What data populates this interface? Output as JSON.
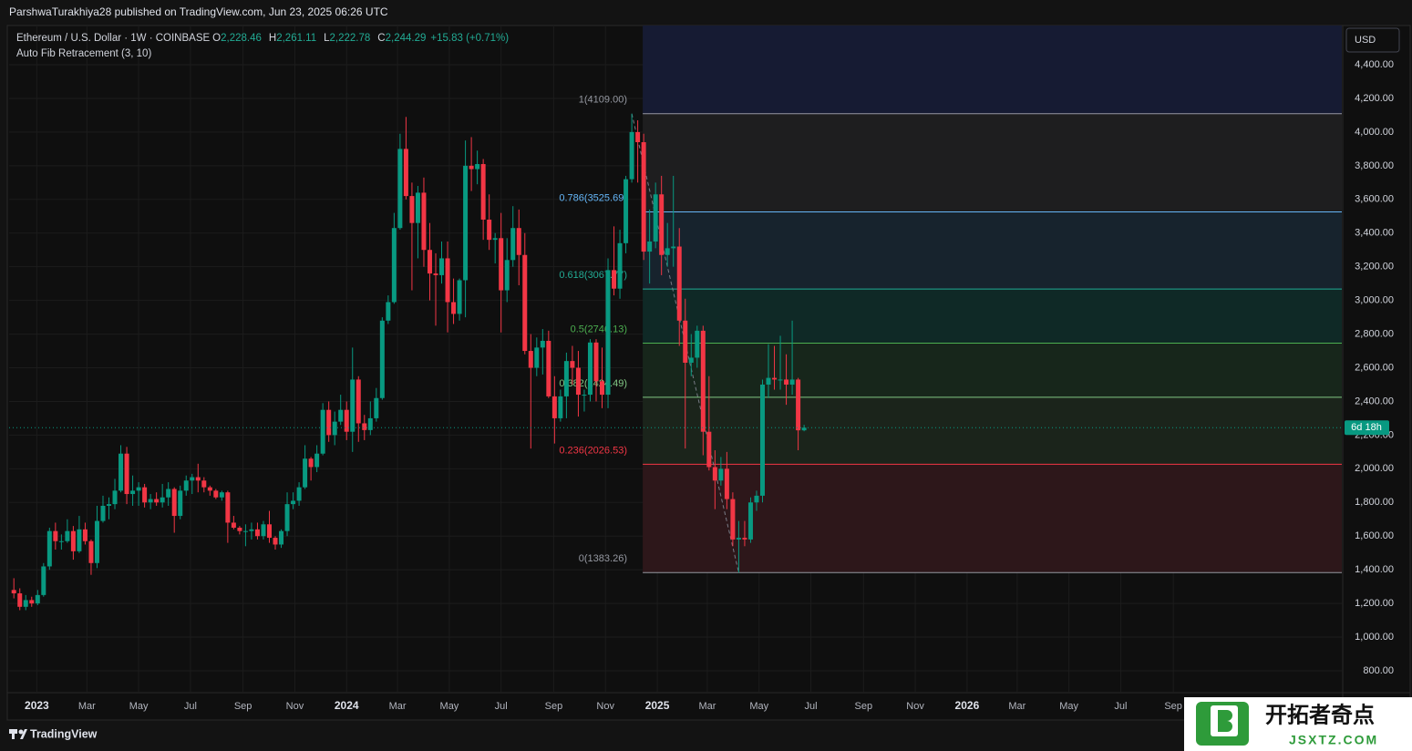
{
  "header": {
    "published": "ParshwaTurakhiya28 published on TradingView.com, Jun 23, 2025 06:26 UTC"
  },
  "legend": {
    "symbol": "Ethereum / U.S. Dollar · 1W · COINBASE",
    "ohlc": [
      {
        "key": "O",
        "value": "2,228.46"
      },
      {
        "key": "H",
        "value": "2,261.11"
      },
      {
        "key": "L",
        "value": "2,222.78"
      },
      {
        "key": "C",
        "value": "2,244.29"
      }
    ],
    "change": "+15.83 (+0.71%)",
    "indicator": "Auto Fib Retracement (3, 10)"
  },
  "chart_data": {
    "type": "candlestick",
    "up_color": "#089981",
    "down_color": "#f23645",
    "grid": true,
    "currency": "USD",
    "countdown": "6d 18h",
    "x": [
      0,
      1,
      2,
      3,
      4,
      5,
      6,
      7,
      8,
      9,
      10,
      11,
      12,
      13,
      14,
      15,
      16,
      17,
      18,
      19,
      20,
      21,
      22,
      23,
      24,
      25,
      26,
      27,
      28,
      29,
      30,
      31,
      32,
      33,
      34,
      35,
      36,
      37,
      38,
      39,
      40,
      41,
      42,
      43,
      44,
      45,
      46,
      47,
      48,
      49,
      50,
      51,
      52,
      53,
      54,
      55,
      56,
      57,
      58,
      59,
      60,
      61,
      62,
      63,
      64,
      65,
      66,
      67,
      68,
      69,
      70,
      71,
      72,
      73,
      74,
      75,
      76,
      77,
      78,
      79,
      80,
      81,
      82,
      83,
      84,
      85,
      86,
      87,
      88,
      89,
      90,
      91,
      92,
      93,
      94,
      95,
      96,
      97,
      98,
      99,
      100,
      101,
      102,
      103,
      104,
      105,
      106,
      107,
      108,
      109,
      110,
      111,
      112,
      113,
      114,
      115,
      116,
      117,
      118,
      119,
      120,
      121,
      122,
      123,
      124,
      125,
      126,
      127,
      128,
      129,
      130,
      131,
      132,
      133
    ],
    "open": [
      1280,
      1260,
      1180,
      1220,
      1200,
      1250,
      1420,
      1630,
      1570,
      1570,
      1630,
      1510,
      1640,
      1570,
      1440,
      1690,
      1780,
      1790,
      1870,
      2090,
      1850,
      1870,
      1890,
      1800,
      1820,
      1800,
      1830,
      1880,
      1720,
      1870,
      1930,
      1950,
      1930,
      1890,
      1870,
      1830,
      1860,
      1680,
      1650,
      1630,
      1630,
      1640,
      1600,
      1670,
      1590,
      1550,
      1630,
      1790,
      1810,
      1890,
      2060,
      2010,
      2090,
      2350,
      2200,
      2280,
      2350,
      2220,
      2530,
      2270,
      2230,
      2300,
      2420,
      2880,
      2990,
      3430,
      3900,
      3620,
      3460,
      3640,
      3300,
      3160,
      3150,
      3250,
      2990,
      2920,
      3120,
      3800,
      3780,
      3810,
      3480,
      3360,
      3370,
      3060,
      3240,
      3430,
      3270,
      2700,
      2600,
      2720,
      2760,
      2430,
      2300,
      2430,
      2640,
      2600,
      2440,
      2440,
      2750,
      2520,
      2440,
      3180,
      3070,
      3340,
      3720,
      4000,
      3940,
      3290,
      3350,
      3630,
      3270,
      3310,
      3320,
      2880,
      2630,
      2660,
      2820,
      2220,
      2010,
      1930,
      2000,
      1820,
      1580,
      1590,
      1580,
      1800,
      1840,
      2500,
      2540,
      2530,
      2530,
      2500,
      2530,
      2228.46
    ],
    "high": [
      1350,
      1290,
      1250,
      1240,
      1280,
      1440,
      1650,
      1680,
      1610,
      1700,
      1660,
      1720,
      1680,
      1580,
      1780,
      1840,
      1830,
      1940,
      2140,
      2130,
      1960,
      1920,
      1910,
      1850,
      1860,
      1910,
      1920,
      1890,
      1900,
      1960,
      1970,
      2030,
      1950,
      1900,
      1880,
      1870,
      1870,
      1720,
      1660,
      1670,
      1680,
      1680,
      1690,
      1750,
      1600,
      1640,
      1860,
      1860,
      1920,
      2140,
      2070,
      2140,
      2390,
      2400,
      2340,
      2440,
      2400,
      2720,
      2550,
      2320,
      2400,
      2480,
      2900,
      3030,
      3520,
      3990,
      4090,
      3700,
      3680,
      3730,
      3460,
      3280,
      3350,
      3350,
      3130,
      3130,
      3950,
      3970,
      3890,
      3840,
      3630,
      3400,
      3520,
      3370,
      3560,
      3540,
      3400,
      2800,
      2780,
      2830,
      2820,
      2550,
      2470,
      2690,
      2730,
      2700,
      2470,
      2770,
      2770,
      2720,
      3250,
      3440,
      3420,
      3740,
      4109,
      4070,
      3990,
      3540,
      3700,
      3740,
      3460,
      3740,
      3430,
      3010,
      2800,
      2850,
      2850,
      2550,
      2110,
      2070,
      2100,
      1860,
      1690,
      1690,
      1830,
      1870,
      2530,
      2740,
      2730,
      2790,
      2680,
      2880,
      2540,
      2261.11
    ],
    "low": [
      1230,
      1160,
      1160,
      1180,
      1190,
      1240,
      1400,
      1520,
      1520,
      1560,
      1460,
      1500,
      1550,
      1370,
      1410,
      1680,
      1700,
      1760,
      1860,
      1790,
      1780,
      1780,
      1770,
      1760,
      1780,
      1770,
      1780,
      1620,
      1700,
      1840,
      1850,
      1860,
      1860,
      1840,
      1820,
      1810,
      1560,
      1640,
      1610,
      1540,
      1580,
      1580,
      1580,
      1560,
      1520,
      1530,
      1600,
      1760,
      1780,
      1880,
      1930,
      1980,
      2080,
      2160,
      2140,
      2260,
      2170,
      2100,
      2160,
      2170,
      2200,
      2280,
      2410,
      2860,
      2980,
      3420,
      3600,
      3060,
      3250,
      3200,
      3000,
      2850,
      3100,
      2810,
      2860,
      2880,
      2900,
      3650,
      3690,
      3360,
      3300,
      3220,
      2810,
      2990,
      3200,
      3090,
      2680,
      2120,
      2550,
      2560,
      2420,
      2150,
      2280,
      2300,
      2500,
      2310,
      2340,
      2400,
      2400,
      2360,
      2360,
      3030,
      3010,
      3280,
      3700,
      3700,
      3240,
      3100,
      3310,
      3150,
      3200,
      3200,
      2730,
      2120,
      2550,
      2600,
      2080,
      1990,
      1760,
      1900,
      1760,
      1540,
      1383.26,
      1540,
      1560,
      1750,
      1800,
      2420,
      2470,
      2470,
      2380,
      2440,
      2110,
      2222.78
    ],
    "close": [
      1260,
      1180,
      1220,
      1200,
      1250,
      1420,
      1630,
      1570,
      1570,
      1630,
      1510,
      1640,
      1570,
      1440,
      1690,
      1780,
      1790,
      1870,
      2090,
      1850,
      1870,
      1890,
      1800,
      1820,
      1800,
      1830,
      1880,
      1720,
      1870,
      1930,
      1950,
      1930,
      1890,
      1870,
      1830,
      1860,
      1680,
      1650,
      1630,
      1630,
      1640,
      1600,
      1670,
      1590,
      1550,
      1630,
      1790,
      1810,
      1890,
      2060,
      2010,
      2090,
      2350,
      2200,
      2280,
      2350,
      2220,
      2530,
      2270,
      2230,
      2300,
      2420,
      2880,
      2990,
      3430,
      3900,
      3620,
      3460,
      3640,
      3300,
      3160,
      3150,
      3250,
      2990,
      2920,
      3120,
      3800,
      3780,
      3810,
      3480,
      3360,
      3370,
      3060,
      3240,
      3430,
      3270,
      2700,
      2600,
      2720,
      2760,
      2430,
      2300,
      2430,
      2640,
      2600,
      2440,
      2440,
      2750,
      2520,
      2440,
      3180,
      3070,
      3340,
      3720,
      4000,
      3940,
      3290,
      3350,
      3630,
      3270,
      3310,
      3320,
      2880,
      2630,
      2660,
      2820,
      2220,
      2010,
      1930,
      2000,
      1820,
      1580,
      1590,
      1580,
      1800,
      1840,
      2500,
      2540,
      2530,
      2530,
      2500,
      2530,
      2228.46,
      2244.29
    ],
    "xlim": [
      -0.8,
      223.5
    ],
    "xticks": [
      {
        "value": 3.86,
        "label": "2023"
      },
      {
        "value": 12.29,
        "label": "Mar"
      },
      {
        "value": 21.0,
        "label": "May"
      },
      {
        "value": 29.71,
        "label": "Jul"
      },
      {
        "value": 38.57,
        "label": "Sep"
      },
      {
        "value": 47.29,
        "label": "Nov"
      },
      {
        "value": 56.0,
        "label": "2024"
      },
      {
        "value": 64.57,
        "label": "Mar"
      },
      {
        "value": 73.29,
        "label": "May"
      },
      {
        "value": 82.0,
        "label": "Jul"
      },
      {
        "value": 90.86,
        "label": "Sep"
      },
      {
        "value": 99.57,
        "label": "Nov"
      },
      {
        "value": 108.29,
        "label": "2025"
      },
      {
        "value": 116.71,
        "label": "Mar"
      },
      {
        "value": 125.43,
        "label": "May"
      },
      {
        "value": 134.14,
        "label": "Jul"
      },
      {
        "value": 143.0,
        "label": "Sep"
      },
      {
        "value": 151.71,
        "label": "Nov"
      },
      {
        "value": 160.43,
        "label": "2026"
      },
      {
        "value": 168.86,
        "label": "Mar"
      },
      {
        "value": 177.57,
        "label": "May"
      },
      {
        "value": 186.29,
        "label": "Jul"
      },
      {
        "value": 195.14,
        "label": "Sep"
      }
    ],
    "ylim": [
      670,
      4633
    ],
    "yticks": [
      {
        "value": 800,
        "label": "800.00"
      },
      {
        "value": 1000,
        "label": "1,000.00"
      },
      {
        "value": 1200,
        "label": "1,200.00"
      },
      {
        "value": 1400,
        "label": "1,400.00"
      },
      {
        "value": 1600,
        "label": "1,600.00"
      },
      {
        "value": 1800,
        "label": "1,800.00"
      },
      {
        "value": 2000,
        "label": "2,000.00"
      },
      {
        "value": 2200,
        "label": "2,200.00"
      },
      {
        "value": 2400,
        "label": "2,400.00"
      },
      {
        "value": 2600,
        "label": "2,600.00"
      },
      {
        "value": 2800,
        "label": "2,800.00"
      },
      {
        "value": 3000,
        "label": "3,000.00"
      },
      {
        "value": 3200,
        "label": "3,200.00"
      },
      {
        "value": 3400,
        "label": "3,400.00"
      },
      {
        "value": 3600,
        "label": "3,600.00"
      },
      {
        "value": 3800,
        "label": "3,800.00"
      },
      {
        "value": 4000,
        "label": "4,000.00"
      },
      {
        "value": 4200,
        "label": "4,200.00"
      },
      {
        "value": 4400,
        "label": "4,400.00"
      }
    ],
    "fib_top_fill": "#161b33",
    "fib_levels": [
      {
        "label": "1(4109.00)",
        "price": 4109.0,
        "color": "#9598a1",
        "fill": "#1e1e1f"
      },
      {
        "label": "0.786(3525.69)",
        "price": 3525.69,
        "color": "#64b5f6",
        "fill": "#17232d"
      },
      {
        "label": "0.618(3067.77)",
        "price": 3067.77,
        "color": "#22ab94",
        "fill": "#0f2926"
      },
      {
        "label": "0.5(2746.13)",
        "price": 2746.13,
        "color": "#4caf50",
        "fill": "#17261b"
      },
      {
        "label": "0.382(2424.49)",
        "price": 2424.49,
        "color": "#81c784",
        "fill": "#1b241b"
      },
      {
        "label": "0.236(2026.53)",
        "price": 2026.53,
        "color": "#f23645",
        "fill": "#2d171a"
      },
      {
        "label": "0(1383.26)",
        "price": 1383.26,
        "color": "#9598a1"
      }
    ]
  },
  "footer": {
    "brand": "TradingView"
  },
  "watermark": {
    "title": "开拓者奇点",
    "url": "JSXTZ.COM"
  }
}
